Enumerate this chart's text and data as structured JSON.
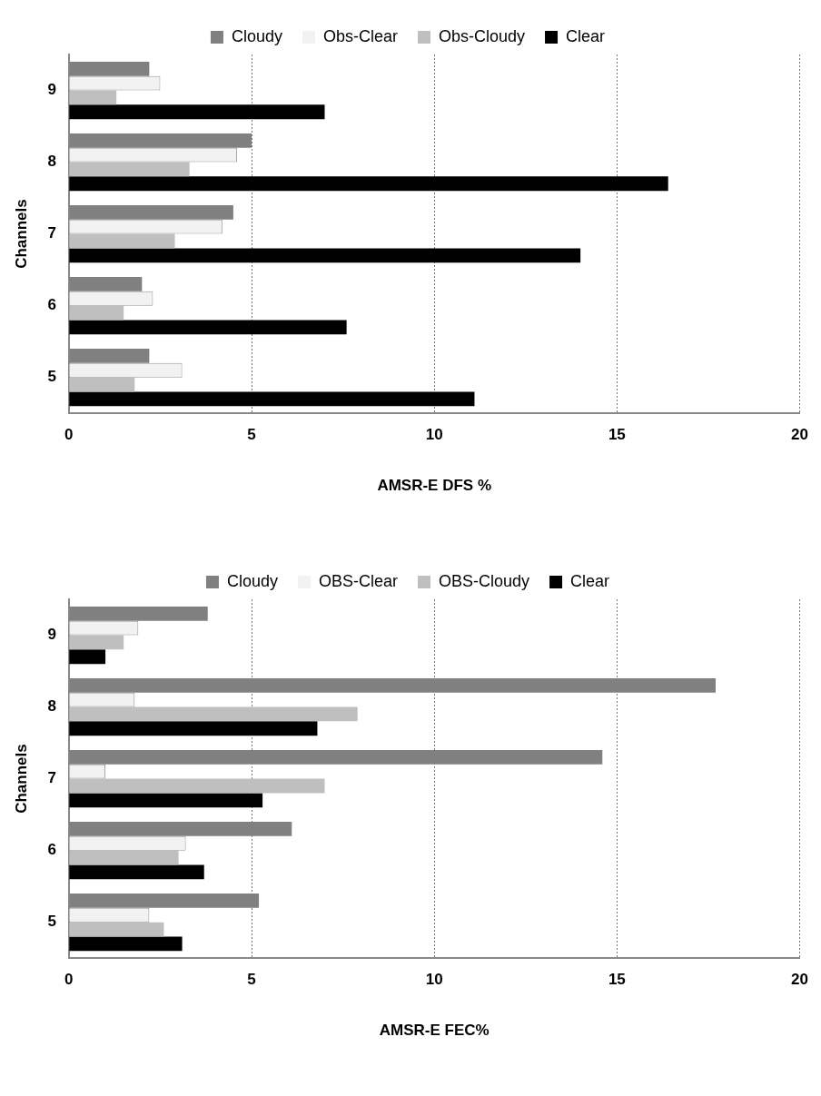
{
  "chart_data": [
    {
      "type": "bar",
      "orientation": "horizontal",
      "categories": [
        "9",
        "8",
        "7",
        "6",
        "5"
      ],
      "xlabel": "AMSR-E DFS %",
      "ylabel": "Channels",
      "xlim": [
        0,
        20
      ],
      "xticks": [
        0,
        5,
        10,
        15,
        20
      ],
      "grid": "x",
      "legend": "top",
      "series": [
        {
          "name": "Cloudy",
          "color": "#808080",
          "values": [
            2.2,
            5.0,
            4.5,
            2.0,
            2.2
          ]
        },
        {
          "name": "Obs-Clear",
          "color": "#f2f2f2",
          "values": [
            2.5,
            4.6,
            4.2,
            2.3,
            3.1
          ]
        },
        {
          "name": "Obs-Cloudy",
          "color": "#bfbfbf",
          "values": [
            1.3,
            3.3,
            2.9,
            1.5,
            1.8
          ]
        },
        {
          "name": "Clear",
          "color": "#000000",
          "values": [
            7.0,
            16.4,
            14.0,
            7.6,
            11.1
          ]
        }
      ]
    },
    {
      "type": "bar",
      "orientation": "horizontal",
      "categories": [
        "9",
        "8",
        "7",
        "6",
        "5"
      ],
      "xlabel": "AMSR-E FEC%",
      "ylabel": "Channels",
      "xlim": [
        0,
        20
      ],
      "xticks": [
        0,
        5,
        10,
        15,
        20
      ],
      "grid": "x",
      "legend": "top",
      "series": [
        {
          "name": "Cloudy",
          "color": "#808080",
          "values": [
            3.8,
            17.7,
            14.6,
            6.1,
            5.2
          ]
        },
        {
          "name": "OBS-Clear",
          "color": "#f2f2f2",
          "values": [
            1.9,
            1.8,
            1.0,
            3.2,
            2.2
          ]
        },
        {
          "name": "OBS-Cloudy",
          "color": "#bfbfbf",
          "values": [
            1.5,
            7.9,
            7.0,
            3.0,
            2.6
          ]
        },
        {
          "name": "Clear",
          "color": "#000000",
          "values": [
            1.0,
            6.8,
            5.3,
            3.7,
            3.1
          ]
        }
      ]
    }
  ]
}
